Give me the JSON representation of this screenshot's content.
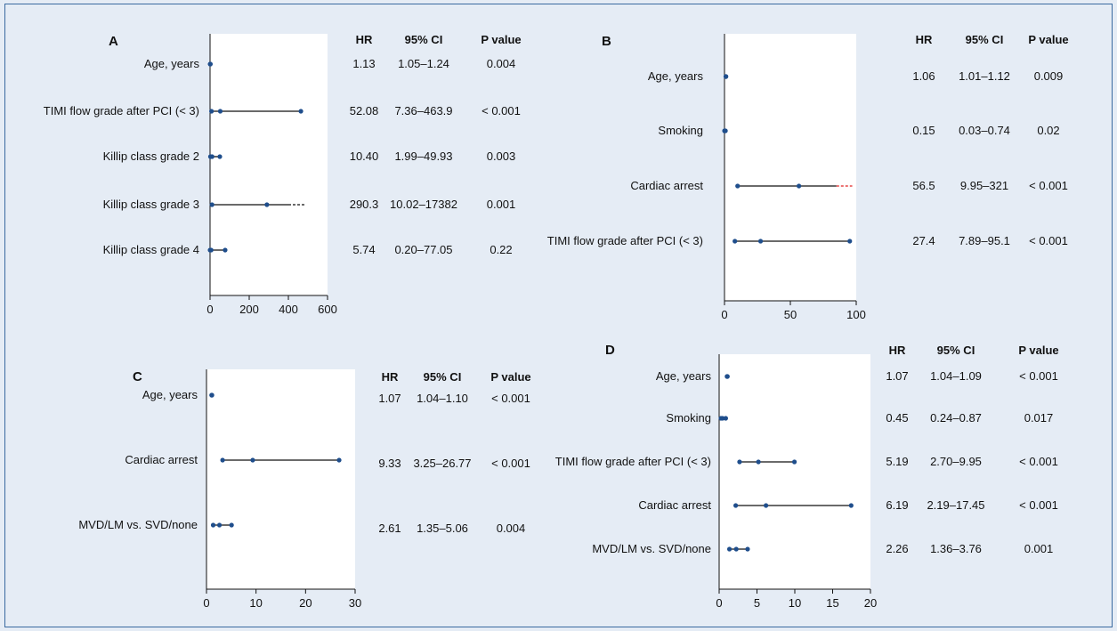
{
  "colors": {
    "background": "#e5ecf5",
    "plot_bg": "#ffffff",
    "marker": "#1f4e8c",
    "line": "#111111",
    "red_dash": "#e02020",
    "border": "#3a6aa0"
  },
  "headers": {
    "hr": "HR",
    "ci": "95% CI",
    "p": "P value"
  },
  "chart_data": [
    {
      "type": "forest",
      "panel": "A",
      "xlim": [
        0,
        600
      ],
      "xticks": [
        0,
        200,
        400,
        600
      ],
      "rows": [
        {
          "label": "Age, years",
          "hr": 1.13,
          "ci_low": 1.05,
          "ci_high": 1.24,
          "hr_text": "1.13",
          "ci_text": "1.05–1.24",
          "p_text": "0.004"
        },
        {
          "label": "TIMI flow grade after PCI (< 3)",
          "hr": 52.08,
          "ci_low": 7.36,
          "ci_high": 463.9,
          "hr_text": "52.08",
          "ci_text": "7.36–463.9",
          "p_text": "< 0.001"
        },
        {
          "label": "Killip class grade 2",
          "hr": 10.4,
          "ci_low": 1.99,
          "ci_high": 49.93,
          "hr_text": "10.40",
          "ci_text": "1.99–49.93",
          "p_text": "0.003"
        },
        {
          "label": "Killip class grade 3",
          "hr": 290.3,
          "ci_low": 10.02,
          "ci_high": 17382,
          "hr_text": "290.3",
          "ci_text": "10.02–17382",
          "p_text": "0.001",
          "truncated": true,
          "dash_color": "black"
        },
        {
          "label": "Killip class grade 4",
          "hr": 5.74,
          "ci_low": 0.2,
          "ci_high": 77.05,
          "hr_text": "5.74",
          "ci_text": "0.20–77.05",
          "p_text": "0.22"
        }
      ]
    },
    {
      "type": "forest",
      "panel": "B",
      "xlim": [
        0,
        100
      ],
      "xticks": [
        0,
        50,
        100
      ],
      "rows": [
        {
          "label": "Age, years",
          "hr": 1.06,
          "ci_low": 1.01,
          "ci_high": 1.12,
          "hr_text": "1.06",
          "ci_text": "1.01–1.12",
          "p_text": "0.009"
        },
        {
          "label": "Smoking",
          "hr": 0.15,
          "ci_low": 0.03,
          "ci_high": 0.74,
          "hr_text": "0.15",
          "ci_text": "0.03–0.74",
          "p_text": "0.02"
        },
        {
          "label": "Cardiac arrest",
          "hr": 56.5,
          "ci_low": 9.95,
          "ci_high": 321,
          "hr_text": "56.5",
          "ci_text": "9.95–321",
          "p_text": "< 0.001",
          "truncated": true,
          "dash_color": "red"
        },
        {
          "label": "TIMI flow grade after PCI (< 3)",
          "hr": 27.4,
          "ci_low": 7.89,
          "ci_high": 95.1,
          "hr_text": "27.4",
          "ci_text": "7.89–95.1",
          "p_text": "< 0.001"
        }
      ]
    },
    {
      "type": "forest",
      "panel": "C",
      "xlim": [
        0,
        30
      ],
      "xticks": [
        0,
        10,
        20,
        30
      ],
      "rows": [
        {
          "label": "Age, years",
          "hr": 1.07,
          "ci_low": 1.04,
          "ci_high": 1.1,
          "hr_text": "1.07",
          "ci_text": "1.04–1.10",
          "p_text": "< 0.001"
        },
        {
          "label": "Cardiac arrest",
          "hr": 9.33,
          "ci_low": 3.25,
          "ci_high": 26.77,
          "hr_text": "9.33",
          "ci_text": "3.25–26.77",
          "p_text": "< 0.001"
        },
        {
          "label": "MVD/LM vs. SVD/none",
          "hr": 2.61,
          "ci_low": 1.35,
          "ci_high": 5.06,
          "hr_text": "2.61",
          "ci_text": "1.35–5.06",
          "p_text": "0.004"
        }
      ]
    },
    {
      "type": "forest",
      "panel": "D",
      "xlim": [
        0,
        20
      ],
      "xticks": [
        0,
        5,
        10,
        15,
        20
      ],
      "rows": [
        {
          "label": "Age, years",
          "hr": 1.07,
          "ci_low": 1.04,
          "ci_high": 1.09,
          "hr_text": "1.07",
          "ci_text": "1.04–1.09",
          "p_text": "< 0.001"
        },
        {
          "label": "Smoking",
          "hr": 0.45,
          "ci_low": 0.24,
          "ci_high": 0.87,
          "hr_text": "0.45",
          "ci_text": "0.24–0.87",
          "p_text": "0.017"
        },
        {
          "label": "TIMI flow grade after PCI (< 3)",
          "hr": 5.19,
          "ci_low": 2.7,
          "ci_high": 9.95,
          "hr_text": "5.19",
          "ci_text": "2.70–9.95",
          "p_text": "< 0.001"
        },
        {
          "label": "Cardiac arrest",
          "hr": 6.19,
          "ci_low": 2.19,
          "ci_high": 17.45,
          "hr_text": "6.19",
          "ci_text": "2.19–17.45",
          "p_text": "< 0.001"
        },
        {
          "label": "MVD/LM vs. SVD/none",
          "hr": 2.26,
          "ci_low": 1.36,
          "ci_high": 3.76,
          "hr_text": "2.26",
          "ci_text": "1.36–3.76",
          "p_text": "0.001"
        }
      ]
    }
  ]
}
